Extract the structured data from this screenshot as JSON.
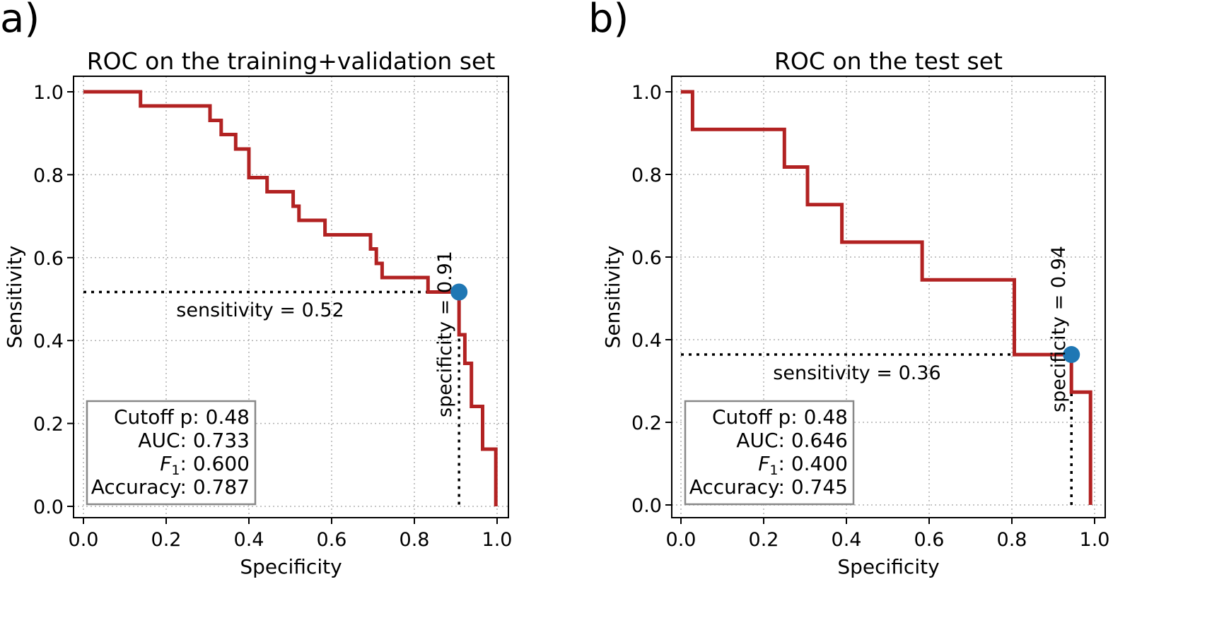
{
  "chart_data": [
    {
      "type": "line",
      "panel_label": "a)",
      "title": "ROC on the training+validation set",
      "xlabel": "Specificity",
      "ylabel": "Sensitivity",
      "xlim": [
        0.0,
        1.0
      ],
      "ylim": [
        0.0,
        1.0
      ],
      "xticks": [
        "0.0",
        "0.2",
        "0.4",
        "0.6",
        "0.8",
        "1.0"
      ],
      "yticks": [
        "0.0",
        "0.2",
        "0.4",
        "0.6",
        "0.8",
        "1.0"
      ],
      "grid": true,
      "series": [
        {
          "name": "ROC",
          "color": "#b22222",
          "x": [
            0.0,
            0.138,
            0.138,
            0.306,
            0.306,
            0.333,
            0.333,
            0.368,
            0.368,
            0.4,
            0.4,
            0.444,
            0.444,
            0.507,
            0.507,
            0.521,
            0.521,
            0.584,
            0.584,
            0.694,
            0.694,
            0.708,
            0.708,
            0.722,
            0.722,
            0.833,
            0.833,
            0.908,
            0.908,
            0.922,
            0.922,
            0.938,
            0.938,
            0.965,
            0.965,
            0.997,
            0.997
          ],
          "y": [
            1.0,
            1.0,
            0.966,
            0.966,
            0.931,
            0.931,
            0.897,
            0.897,
            0.862,
            0.862,
            0.793,
            0.793,
            0.759,
            0.759,
            0.724,
            0.724,
            0.69,
            0.69,
            0.655,
            0.655,
            0.621,
            0.621,
            0.586,
            0.586,
            0.552,
            0.552,
            0.517,
            0.517,
            0.414,
            0.414,
            0.345,
            0.345,
            0.241,
            0.241,
            0.138,
            0.138,
            0.0
          ]
        }
      ],
      "cutoff_point": {
        "x": 0.908,
        "y": 0.517,
        "color": "#1f77b4"
      },
      "annotations": {
        "sensitivity": "sensitivity = 0.52",
        "specificity": "specificity = 0.91"
      },
      "legend": {
        "position": "lower-left",
        "cutoff": "Cutoff p: 0.48",
        "auc": "AUC: 0.733",
        "f1_prefix": "F",
        "f1_sub": "1",
        "f1_value": ": 0.600",
        "accuracy": "Accuracy: 0.787"
      }
    },
    {
      "type": "line",
      "panel_label": "b)",
      "title": "ROC on the test set",
      "xlabel": "Specificity",
      "ylabel": "Sensitivity",
      "xlim": [
        0.0,
        1.0
      ],
      "ylim": [
        0.0,
        1.0
      ],
      "xticks": [
        "0.0",
        "0.2",
        "0.4",
        "0.6",
        "0.8",
        "1.0"
      ],
      "yticks": [
        "0.0",
        "0.2",
        "0.4",
        "0.6",
        "0.8",
        "1.0"
      ],
      "grid": true,
      "series": [
        {
          "name": "ROC",
          "color": "#b22222",
          "x": [
            0.0,
            0.028,
            0.028,
            0.25,
            0.25,
            0.306,
            0.306,
            0.389,
            0.389,
            0.583,
            0.583,
            0.806,
            0.806,
            0.944,
            0.944,
            0.99,
            0.99
          ],
          "y": [
            1.0,
            1.0,
            0.909,
            0.909,
            0.818,
            0.818,
            0.727,
            0.727,
            0.636,
            0.636,
            0.545,
            0.545,
            0.364,
            0.364,
            0.273,
            0.273,
            0.0
          ]
        }
      ],
      "cutoff_point": {
        "x": 0.944,
        "y": 0.364,
        "color": "#1f77b4"
      },
      "annotations": {
        "sensitivity": "sensitivity = 0.36",
        "specificity": "specificity = 0.94"
      },
      "legend": {
        "position": "lower-left",
        "cutoff": "Cutoff p: 0.48",
        "auc": "AUC: 0.646",
        "f1_prefix": "F",
        "f1_sub": "1",
        "f1_value": ": 0.400",
        "accuracy": "Accuracy: 0.745"
      }
    }
  ]
}
